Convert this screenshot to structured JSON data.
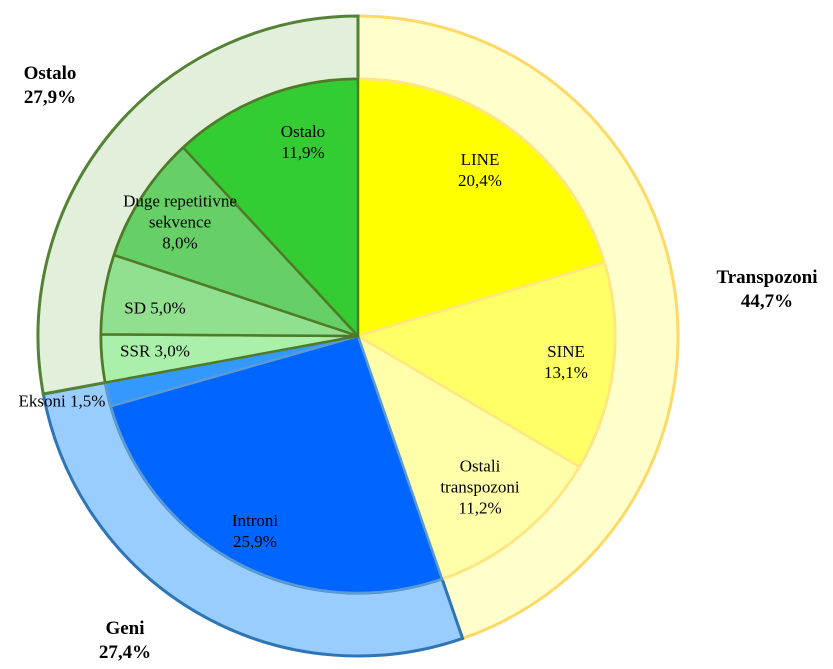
{
  "chart_data": {
    "type": "pie",
    "outer": {
      "categories": [
        "Transpozoni",
        "Geni",
        "Ostalo"
      ],
      "values": [
        44.7,
        27.4,
        27.9
      ],
      "value_labels": [
        "44,7%",
        "27,4%",
        "27,9%"
      ],
      "colors": [
        "#ffffcc",
        "#99ccff",
        "#e2efda"
      ]
    },
    "inner": {
      "categories": [
        "LINE",
        "SINE",
        "Ostali transpozoni",
        "Introni",
        "Eksoni",
        "SSR",
        "SD",
        "Duge repetitivne sekvence",
        "Ostalo"
      ],
      "values": [
        20.4,
        13.1,
        11.2,
        25.9,
        1.5,
        3.0,
        5.0,
        8.0,
        11.9
      ],
      "value_labels": [
        "20,4%",
        "13,1%",
        "11,2%",
        "25,9%",
        "1,5%",
        "3,0%",
        "5,0%",
        "8,0%",
        "11,9%"
      ],
      "colors": [
        "#ffff00",
        "#ffff66",
        "#ffffaa",
        "#0066ff",
        "#3399ff",
        "#aaf0aa",
        "#90e090",
        "#66d066",
        "#33cc33"
      ]
    }
  }
}
